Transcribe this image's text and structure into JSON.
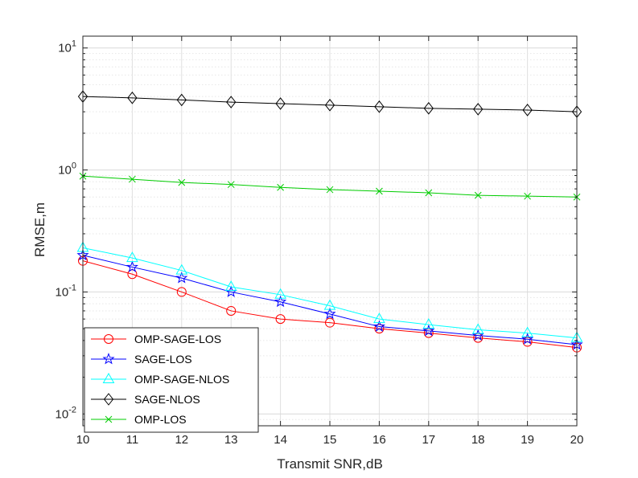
{
  "chart_data": {
    "type": "line",
    "yscale": "log",
    "xlabel": "Transmit SNR,dB",
    "ylabel": "RMSE,m",
    "xlim": [
      10,
      20
    ],
    "ylim": [
      0.008,
      12.5
    ],
    "x": [
      10,
      11,
      12,
      13,
      14,
      15,
      16,
      17,
      18,
      19,
      20
    ],
    "x_ticks": [
      "10",
      "11",
      "12",
      "13",
      "14",
      "15",
      "16",
      "17",
      "18",
      "19",
      "20"
    ],
    "y_ticks": [
      {
        "value": 0.01,
        "base": "10",
        "exp": "-2"
      },
      {
        "value": 0.1,
        "base": "10",
        "exp": "-1"
      },
      {
        "value": 1,
        "base": "10",
        "exp": "0"
      },
      {
        "value": 10,
        "base": "10",
        "exp": "1"
      }
    ],
    "grid": true,
    "legend_position": "bottom-left",
    "series": [
      {
        "name": "OMP-SAGE-LOS",
        "color": "#ff0000",
        "marker": "circle",
        "values": [
          0.18,
          0.14,
          0.1,
          0.07,
          0.06,
          0.056,
          0.05,
          0.046,
          0.042,
          0.039,
          0.035
        ]
      },
      {
        "name": "SAGE-LOS",
        "color": "#0000ff",
        "marker": "star",
        "values": [
          0.2,
          0.16,
          0.13,
          0.1,
          0.083,
          0.066,
          0.052,
          0.048,
          0.044,
          0.041,
          0.037
        ]
      },
      {
        "name": "OMP-SAGE-NLOS",
        "color": "#00ffff",
        "marker": "triangle",
        "values": [
          0.23,
          0.19,
          0.15,
          0.11,
          0.095,
          0.077,
          0.06,
          0.054,
          0.049,
          0.046,
          0.042
        ]
      },
      {
        "name": "SAGE-NLOS",
        "color": "#000000",
        "marker": "diamond",
        "values": [
          4.0,
          3.9,
          3.75,
          3.6,
          3.5,
          3.4,
          3.3,
          3.2,
          3.15,
          3.1,
          3.0
        ]
      },
      {
        "name": "OMP-LOS",
        "color": "#00cc00",
        "marker": "x",
        "values": [
          0.89,
          0.84,
          0.79,
          0.76,
          0.72,
          0.69,
          0.67,
          0.65,
          0.62,
          0.61,
          0.6
        ]
      }
    ]
  }
}
